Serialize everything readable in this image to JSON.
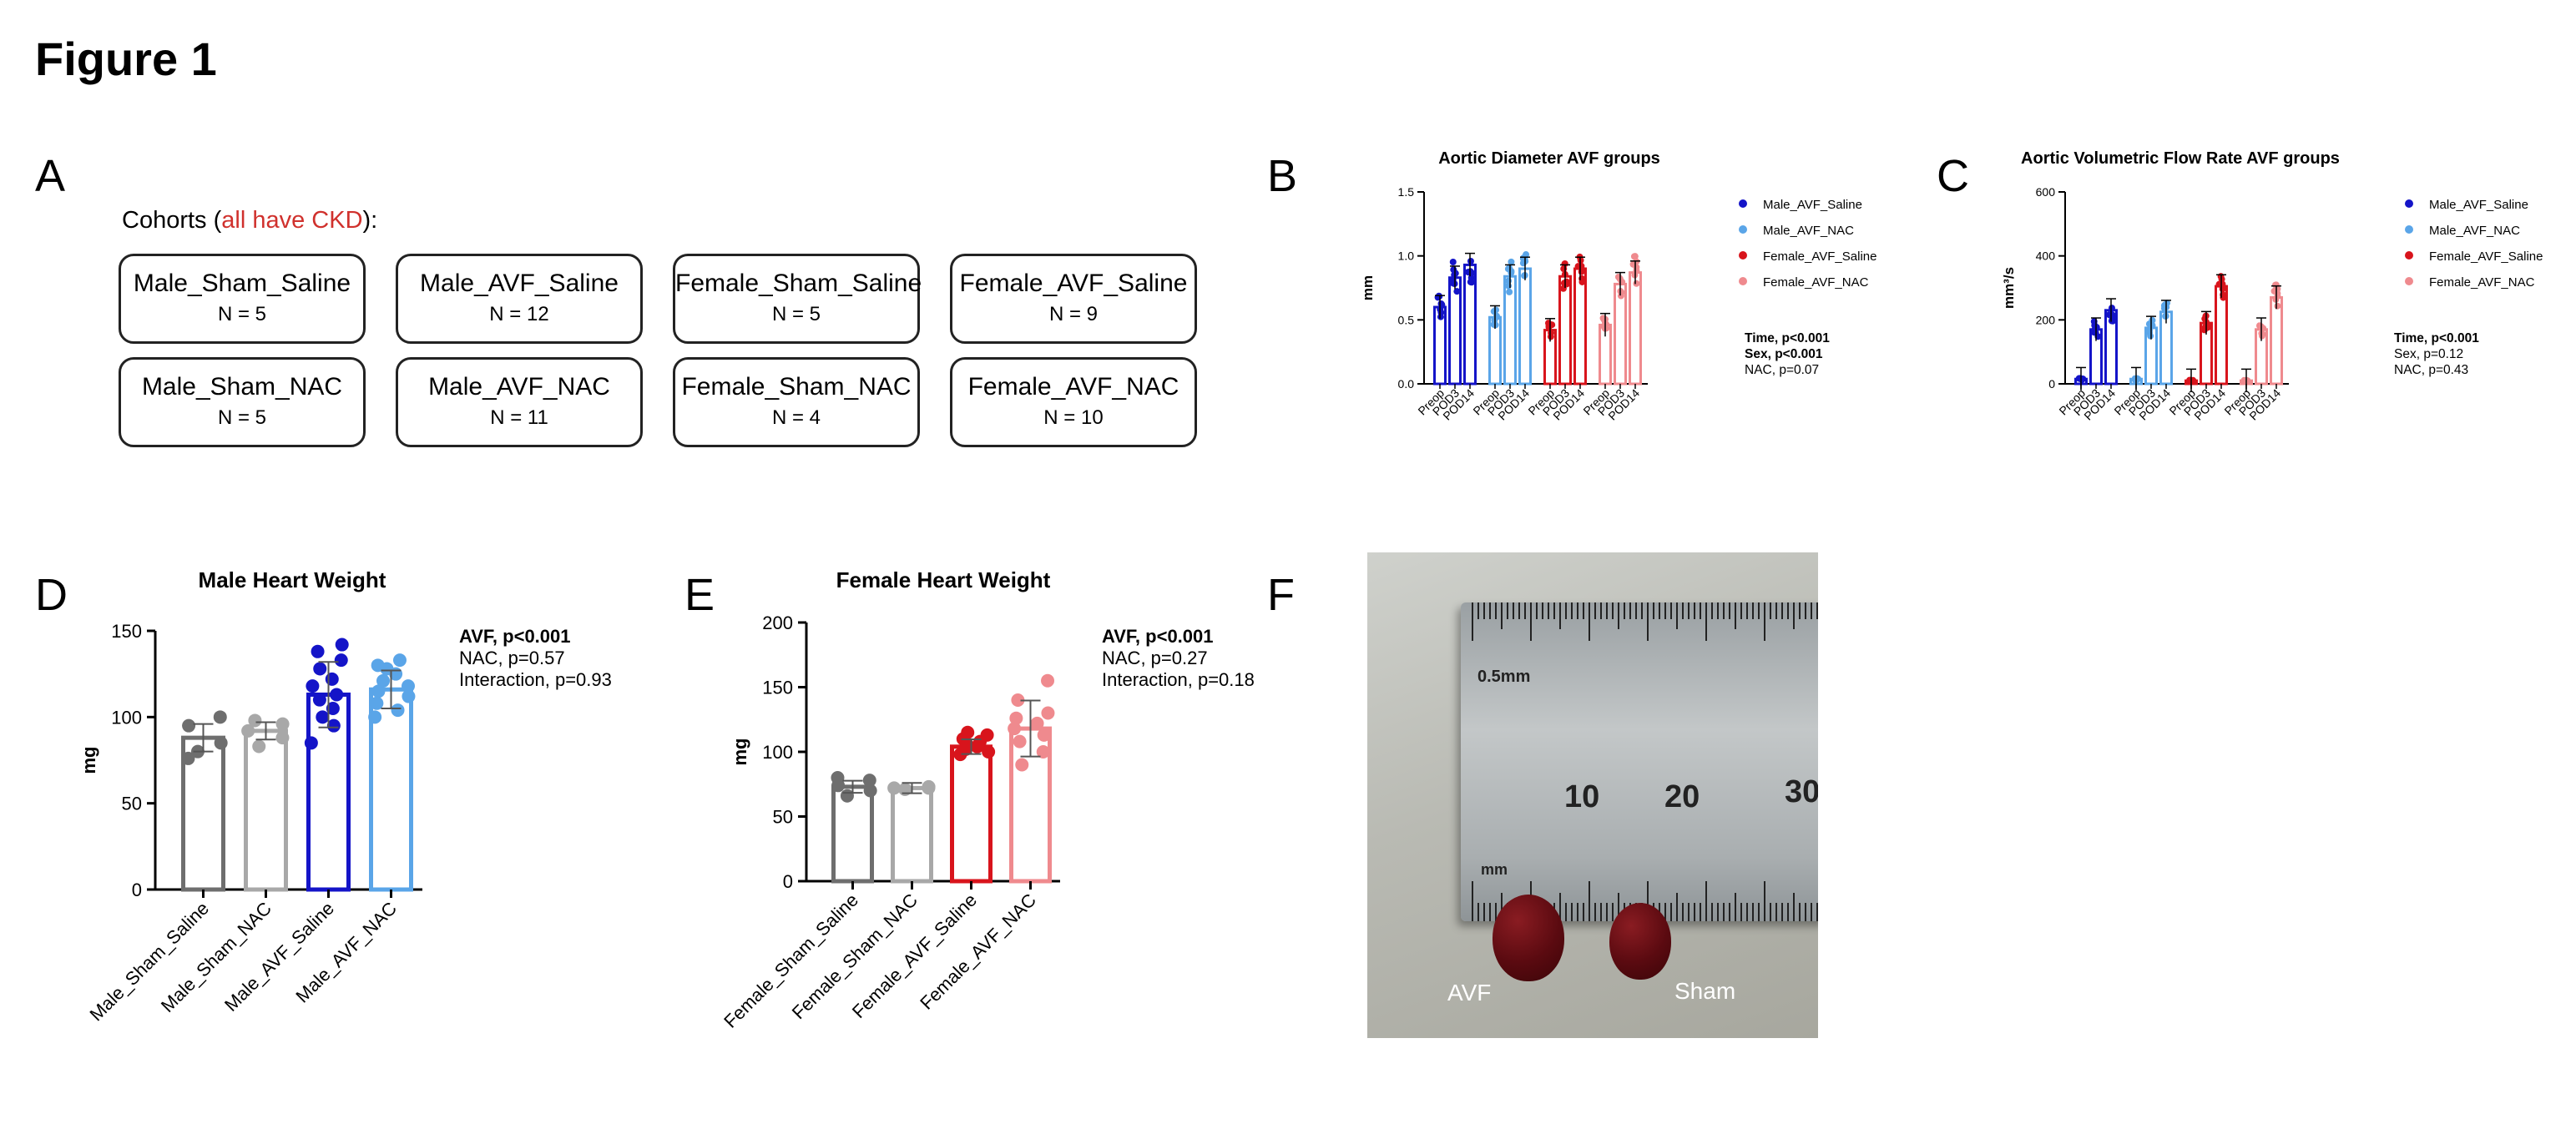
{
  "figure_title": "Figure 1",
  "panel_letters": {
    "A": "A",
    "B": "B",
    "C": "C",
    "D": "D",
    "E": "E",
    "F": "F"
  },
  "cohorts": {
    "heading_prefix": "Cohorts (",
    "heading_red": "all have CKD",
    "heading_suffix": "):",
    "items": [
      {
        "name": "Male_Sham_Saline",
        "n": "N = 5"
      },
      {
        "name": "Male_AVF_Saline",
        "n": "N = 12"
      },
      {
        "name": "Female_Sham_Saline",
        "n": "N = 5"
      },
      {
        "name": "Female_AVF_Saline",
        "n": "N = 9"
      },
      {
        "name": "Male_Sham_NAC",
        "n": "N = 5"
      },
      {
        "name": "Male_AVF_NAC",
        "n": "N = 11"
      },
      {
        "name": "Female_Sham_NAC",
        "n": "N = 4"
      },
      {
        "name": "Female_AVF_NAC",
        "n": "N = 10"
      }
    ]
  },
  "stats": {
    "B": [
      "Time, p<0.001",
      "Sex, p<0.001",
      "NAC, p=0.07"
    ],
    "C": [
      "Time, p<0.001",
      "Sex, p=0.12",
      "NAC, p=0.43"
    ],
    "D": [
      "AVF, p<0.001",
      "NAC, p=0.57",
      "Interaction, p=0.93"
    ],
    "E": [
      "AVF, p<0.001",
      "NAC, p=0.27",
      "Interaction, p=0.18"
    ]
  },
  "photo": {
    "label_left": "AVF",
    "label_right": "Sham",
    "ruler_text_top": "0.5mm",
    "ruler_text_mm": "mm",
    "ruler_numbers": [
      "10",
      "20",
      "30"
    ]
  },
  "chart_data": [
    {
      "id": "B",
      "type": "bar",
      "title": "Aortic Diameter AVF groups",
      "ylabel": "mm",
      "ylim": [
        0,
        1.5
      ],
      "yticks": [
        "0.0",
        "0.5",
        "1.0",
        "1.5"
      ],
      "categories": [
        "Preop",
        "POD3",
        "POD14"
      ],
      "series": [
        {
          "name": "Male_AVF_Saline",
          "color": "#1414c8",
          "values": [
            0.6,
            0.83,
            0.93
          ]
        },
        {
          "name": "Male_AVF_NAC",
          "color": "#5aa5e8",
          "values": [
            0.52,
            0.84,
            0.9
          ]
        },
        {
          "name": "Female_AVF_Saline",
          "color": "#d8141c",
          "values": [
            0.42,
            0.84,
            0.9
          ]
        },
        {
          "name": "Female_AVF_NAC",
          "color": "#ef8a8e",
          "values": [
            0.46,
            0.78,
            0.87
          ]
        }
      ]
    },
    {
      "id": "C",
      "type": "bar",
      "title": "Aortic Volumetric Flow Rate AVF groups",
      "ylabel": "mm³/s",
      "ylim": [
        0,
        600
      ],
      "yticks": [
        "0",
        "200",
        "400",
        "600"
      ],
      "categories": [
        "Preop",
        "POD3",
        "POD14"
      ],
      "series": [
        {
          "name": "Male_AVF_Saline",
          "color": "#1414c8",
          "values": [
            15,
            170,
            230
          ]
        },
        {
          "name": "Male_AVF_NAC",
          "color": "#5aa5e8",
          "values": [
            15,
            175,
            225
          ]
        },
        {
          "name": "Female_AVF_Saline",
          "color": "#d8141c",
          "values": [
            10,
            190,
            305
          ]
        },
        {
          "name": "Female_AVF_NAC",
          "color": "#ef8a8e",
          "values": [
            10,
            170,
            270
          ]
        }
      ]
    },
    {
      "id": "D",
      "type": "bar",
      "title": "Male Heart Weight",
      "ylabel": "mg",
      "ylim": [
        0,
        150
      ],
      "yticks": [
        "0",
        "50",
        "100",
        "150"
      ],
      "categories": [
        "Male_Sham_Saline",
        "Male_Sham_NAC",
        "Male_AVF_Saline",
        "Male_AVF_NAC"
      ],
      "colors": [
        "#6e6e6e",
        "#a8a8a8",
        "#1414c8",
        "#5aa5e8"
      ],
      "values": [
        88,
        92,
        113,
        116
      ],
      "points": [
        [
          80,
          85,
          95,
          100,
          76
        ],
        [
          83,
          88,
          92,
          96,
          98
        ],
        [
          85,
          95,
          100,
          105,
          110,
          113,
          118,
          122,
          128,
          133,
          138,
          142
        ],
        [
          100,
          104,
          108,
          112,
          115,
          118,
          121,
          125,
          130,
          133,
          128
        ]
      ]
    },
    {
      "id": "E",
      "type": "bar",
      "title": "Female Heart Weight",
      "ylabel": "mg",
      "ylim": [
        0,
        200
      ],
      "yticks": [
        "0",
        "50",
        "100",
        "150",
        "200"
      ],
      "categories": [
        "Female_Sham_Saline",
        "Female_Sham_NAC",
        "Female_AVF_Saline",
        "Female_AVF_NAC"
      ],
      "colors": [
        "#6e6e6e",
        "#a8a8a8",
        "#d8141c",
        "#ef8a8e"
      ],
      "values": [
        73,
        72,
        104,
        118
      ],
      "points": [
        [
          66,
          70,
          74,
          78,
          80
        ],
        [
          71,
          72,
          72,
          73
        ],
        [
          98,
          100,
          102,
          104,
          106,
          108,
          110,
          113,
          115
        ],
        [
          90,
          100,
          108,
          113,
          118,
          122,
          126,
          130,
          140,
          155
        ]
      ]
    }
  ]
}
